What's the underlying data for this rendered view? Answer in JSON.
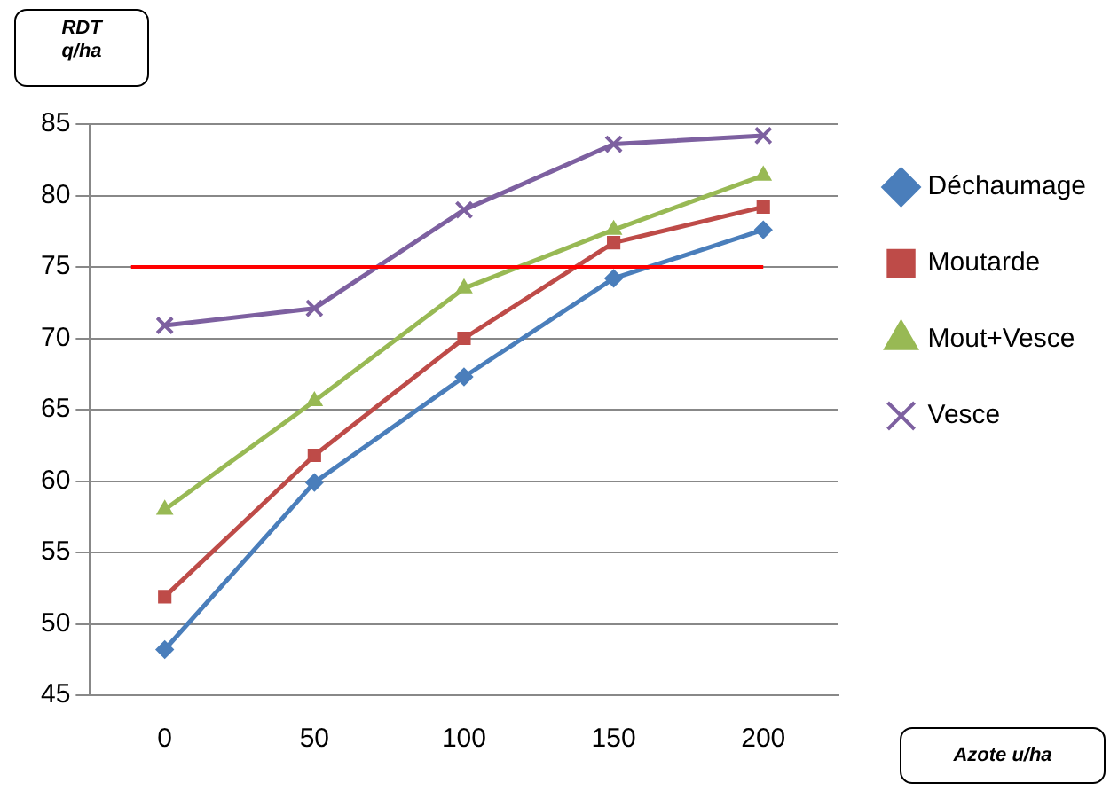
{
  "chart_data": {
    "type": "line",
    "annotations": [
      "Azote u/ha"
    ],
    "ylabel": "RDT\nq/ha",
    "categories": [
      "0",
      "50",
      "100",
      "150",
      "200"
    ],
    "series": [
      {
        "name": "Déchaumage",
        "color": "#4a7ebb",
        "marker": "diamond",
        "values": [
          48.2,
          59.9,
          67.3,
          74.2,
          77.6
        ]
      },
      {
        "name": "Moutarde",
        "color": "#be4b48",
        "marker": "square",
        "values": [
          51.9,
          61.8,
          70.0,
          76.7,
          79.2
        ]
      },
      {
        "name": "Mout+Vesce",
        "color": "#98b954",
        "marker": "triangle",
        "values": [
          58.0,
          65.6,
          73.5,
          77.6,
          81.4
        ]
      },
      {
        "name": "Vesce",
        "color": "#7d60a0",
        "marker": "cross",
        "values": [
          70.9,
          72.1,
          79.0,
          83.6,
          84.2
        ]
      }
    ],
    "ylim": [
      45,
      85
    ],
    "yticks": [
      45,
      50,
      55,
      60,
      65,
      70,
      75,
      80,
      85
    ],
    "grid": "y",
    "legend": "right",
    "ref_lines": [
      {
        "axis": "y",
        "value": 75,
        "color": "#ff0000"
      }
    ]
  }
}
